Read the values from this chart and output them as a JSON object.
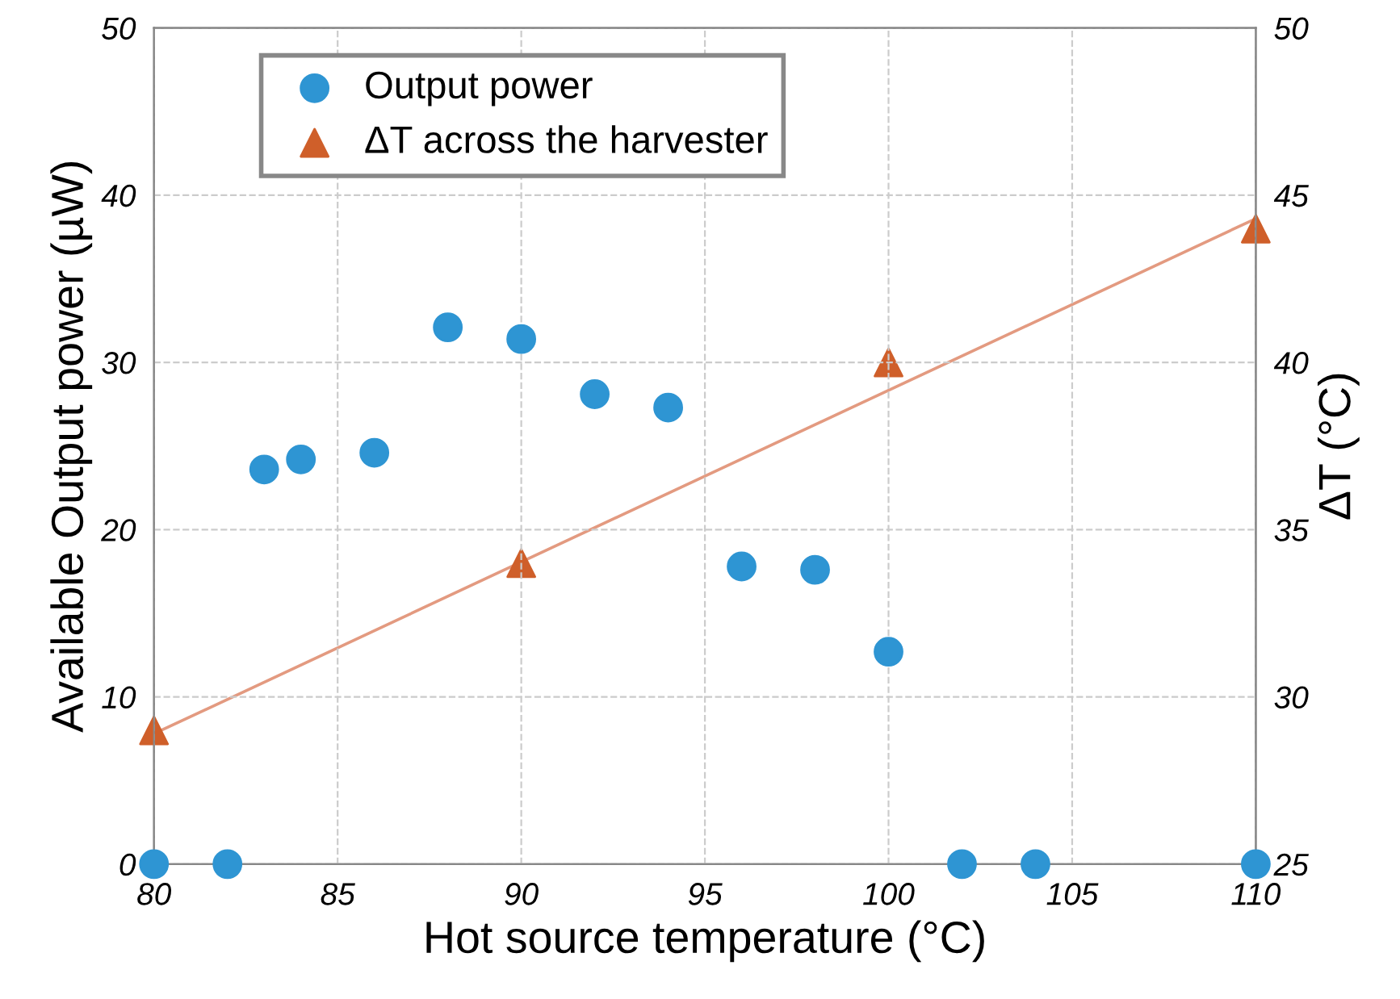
{
  "chart_data": {
    "type": "scatter",
    "xlabel": "Hot source temperature (°C)",
    "ylabel": "Available Output power (µW)",
    "y2label": "ΔT (°C)",
    "xlim": [
      80,
      110
    ],
    "xticks": [
      80,
      85,
      90,
      95,
      100,
      105,
      110
    ],
    "ylim": [
      0,
      50
    ],
    "yticks": [
      0,
      10,
      20,
      30,
      40,
      50
    ],
    "y2lim": [
      25,
      50
    ],
    "y2ticks": [
      25,
      30,
      35,
      40,
      45,
      50
    ],
    "grid": true,
    "legend": "top left",
    "series": [
      {
        "name": "Output power",
        "marker": "circle",
        "color": "#2e95d3",
        "x": [
          80,
          82,
          83,
          84,
          86,
          88,
          90,
          92,
          94,
          96,
          98,
          100,
          102,
          104,
          110
        ],
        "values": [
          0,
          0,
          23.6,
          24.2,
          24.6,
          32.1,
          31.4,
          28.1,
          27.3,
          17.8,
          17.6,
          12.7,
          0,
          0,
          0
        ]
      },
      {
        "name": "ΔT across the harvester",
        "marker": "triangle",
        "axis": "y2",
        "color": "#cf5f2a",
        "x": [
          80,
          90,
          100,
          110
        ],
        "values": [
          29,
          34,
          40,
          44
        ]
      },
      {
        "type": "line",
        "marker": "none",
        "line_style": "solid",
        "axis": "y2",
        "color": "#e39a80",
        "x": [
          80,
          110
        ],
        "values": [
          28.9,
          44.3
        ]
      }
    ]
  }
}
